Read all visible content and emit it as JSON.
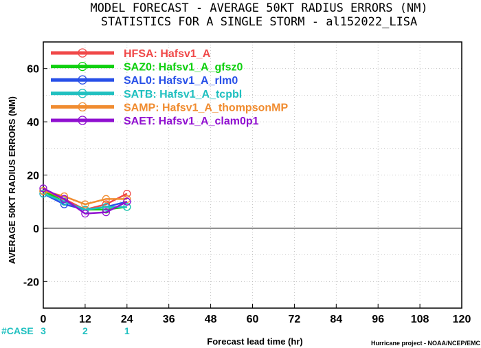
{
  "titles": {
    "line1": "MODEL FORECAST - AVERAGE 50KT RADIUS ERRORS (NM)",
    "line2": "STATISTICS FOR A SINGLE STORM - al152022_LISA"
  },
  "case_row": {
    "label": "#CASE",
    "counts": [
      {
        "x": 0,
        "value": "3"
      },
      {
        "x": 12,
        "value": "2"
      },
      {
        "x": 24,
        "value": "1"
      }
    ]
  },
  "credit": "Hurricane project - NOAA/NCEP/EMC",
  "chart_data": {
    "type": "line",
    "xlabel": "Forecast lead time (hr)",
    "ylabel": "AVERAGE 50KT RADIUS ERRORS (NM)",
    "xlim": [
      0,
      120
    ],
    "ylim": [
      -30,
      70
    ],
    "xticks": [
      0,
      12,
      24,
      36,
      48,
      60,
      72,
      84,
      96,
      108,
      120
    ],
    "yticks": [
      -20,
      0,
      20,
      40,
      60
    ],
    "grid": true,
    "legend_position": "top-left",
    "series": [
      {
        "name": "HFSA: Hafsv1_A",
        "color": "#f04848",
        "x": [
          0,
          6,
          12,
          18,
          24
        ],
        "y": [
          14,
          11,
          7,
          9,
          13
        ]
      },
      {
        "name": "SAZ0: Hafsv1_A_gfsz0",
        "color": "#10d010",
        "x": [
          0,
          6,
          12,
          18,
          24
        ],
        "y": [
          14,
          10,
          7,
          7,
          8
        ]
      },
      {
        "name": "SAL0: Hafsv1_A_rlm0",
        "color": "#2850e8",
        "x": [
          0,
          6,
          12,
          18,
          24
        ],
        "y": [
          13,
          9,
          7,
          8,
          10
        ]
      },
      {
        "name": "SATB: Hafsv1_A_tcpbl",
        "color": "#20c0c0",
        "x": [
          0,
          6,
          12,
          18,
          24
        ],
        "y": [
          13,
          10,
          7,
          8,
          8
        ]
      },
      {
        "name": "SAMP: Hafsv1_A_thompsonMP",
        "color": "#f08c30",
        "x": [
          0,
          6,
          12,
          18,
          24
        ],
        "y": [
          14,
          12,
          9,
          11,
          11
        ]
      },
      {
        "name": "SAET: Hafsv1_A_clam0p1",
        "color": "#9010d0",
        "x": [
          0,
          6,
          12,
          18,
          24
        ],
        "y": [
          15,
          11,
          5.5,
          6,
          10
        ]
      }
    ]
  }
}
